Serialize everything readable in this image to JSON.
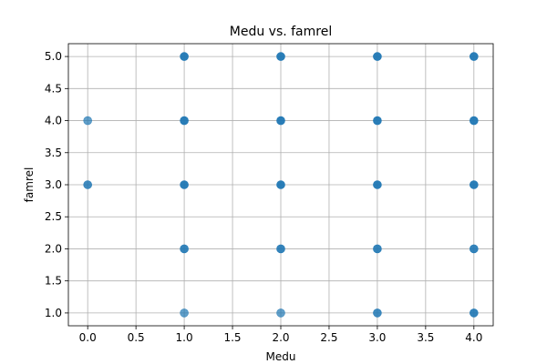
{
  "chart_data": {
    "type": "scatter",
    "title": "Medu vs. famrel",
    "xlabel": "Medu",
    "ylabel": "famrel",
    "xlim": [
      -0.2,
      4.2
    ],
    "ylim": [
      0.8,
      5.2
    ],
    "xticks": [
      0.0,
      0.5,
      1.0,
      1.5,
      2.0,
      2.5,
      3.0,
      3.5,
      4.0
    ],
    "xtick_labels": [
      "0.0",
      "0.5",
      "1.0",
      "1.5",
      "2.0",
      "2.5",
      "3.0",
      "3.5",
      "4.0"
    ],
    "yticks": [
      1.0,
      1.5,
      2.0,
      2.5,
      3.0,
      3.5,
      4.0,
      4.5,
      5.0
    ],
    "ytick_labels": [
      "1.0",
      "1.5",
      "2.0",
      "2.5",
      "3.0",
      "3.5",
      "4.0",
      "4.5",
      "5.0"
    ],
    "grid": true,
    "color": "#1f77b4",
    "points": [
      {
        "x": 0,
        "y": 4,
        "o": 0.7
      },
      {
        "x": 0,
        "y": 3,
        "o": 0.85
      },
      {
        "x": 1,
        "y": 5,
        "o": 0.95
      },
      {
        "x": 1,
        "y": 4,
        "o": 0.95
      },
      {
        "x": 1,
        "y": 3,
        "o": 0.95
      },
      {
        "x": 1,
        "y": 2,
        "o": 0.9
      },
      {
        "x": 1,
        "y": 1,
        "o": 0.7
      },
      {
        "x": 2,
        "y": 5,
        "o": 0.95
      },
      {
        "x": 2,
        "y": 4,
        "o": 0.95
      },
      {
        "x": 2,
        "y": 3,
        "o": 0.95
      },
      {
        "x": 2,
        "y": 2,
        "o": 0.9
      },
      {
        "x": 2,
        "y": 1,
        "o": 0.7
      },
      {
        "x": 3,
        "y": 5,
        "o": 0.95
      },
      {
        "x": 3,
        "y": 4,
        "o": 0.95
      },
      {
        "x": 3,
        "y": 3,
        "o": 0.95
      },
      {
        "x": 3,
        "y": 2,
        "o": 0.9
      },
      {
        "x": 3,
        "y": 1,
        "o": 0.85
      },
      {
        "x": 4,
        "y": 5,
        "o": 0.95
      },
      {
        "x": 4,
        "y": 4,
        "o": 0.95
      },
      {
        "x": 4,
        "y": 3,
        "o": 0.95
      },
      {
        "x": 4,
        "y": 2,
        "o": 0.9
      },
      {
        "x": 4,
        "y": 1,
        "o": 0.9
      }
    ]
  }
}
